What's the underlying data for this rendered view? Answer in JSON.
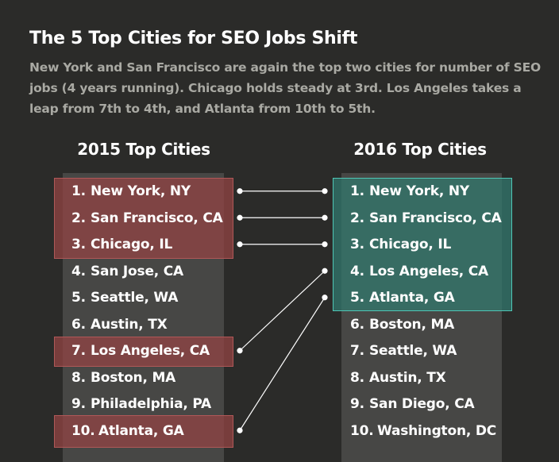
{
  "title": "The 5 Top Cities for SEO Jobs Shift",
  "subtitle": "New York and San Francisco are again the top two cities for number of SEO jobs (4 years running). Chicago holds steady at 3rd. Los Angeles takes a leap from 7th to 4th, and Atlanta from 10th to 5th.",
  "left_heading": "2015 Top Cities",
  "right_heading": "2016 Top Cities",
  "left": [
    {
      "num": "1.",
      "city": "New York, NY"
    },
    {
      "num": "2.",
      "city": "San Francisco, CA"
    },
    {
      "num": "3.",
      "city": "Chicago, IL"
    },
    {
      "num": "4.",
      "city": "San Jose, CA"
    },
    {
      "num": "5.",
      "city": "Seattle, WA"
    },
    {
      "num": "6.",
      "city": "Austin, TX"
    },
    {
      "num": "7.",
      "city": "Los Angeles, CA"
    },
    {
      "num": "8.",
      "city": "Boston, MA"
    },
    {
      "num": "9.",
      "city": "Philadelphia, PA"
    },
    {
      "num": "10.",
      "city": "Atlanta, GA"
    }
  ],
  "right": [
    {
      "num": "1.",
      "city": "New York, NY"
    },
    {
      "num": "2.",
      "city": "San Francisco, CA"
    },
    {
      "num": "3.",
      "city": "Chicago, IL"
    },
    {
      "num": "4.",
      "city": "Los Angeles, CA"
    },
    {
      "num": "5.",
      "city": "Atlanta, GA"
    },
    {
      "num": "6.",
      "city": "Boston, MA"
    },
    {
      "num": "7.",
      "city": "Seattle, WA"
    },
    {
      "num": "8.",
      "city": "Austin, TX"
    },
    {
      "num": "9.",
      "city": "San Diego, CA"
    },
    {
      "num": "10.",
      "city": "Washington, DC"
    }
  ],
  "links": [
    {
      "from_rank": 1,
      "to_rank": 1
    },
    {
      "from_rank": 2,
      "to_rank": 2
    },
    {
      "from_rank": 3,
      "to_rank": 3
    },
    {
      "from_rank": 7,
      "to_rank": 4
    },
    {
      "from_rank": 10,
      "to_rank": 5
    }
  ],
  "colors": {
    "background": "#2b2b29",
    "panel": "#474745",
    "highlight_2015": "#964444",
    "highlight_2016": "#32786e",
    "highlight_2016_border": "#4fc7b6",
    "connector": "#ffffff"
  }
}
